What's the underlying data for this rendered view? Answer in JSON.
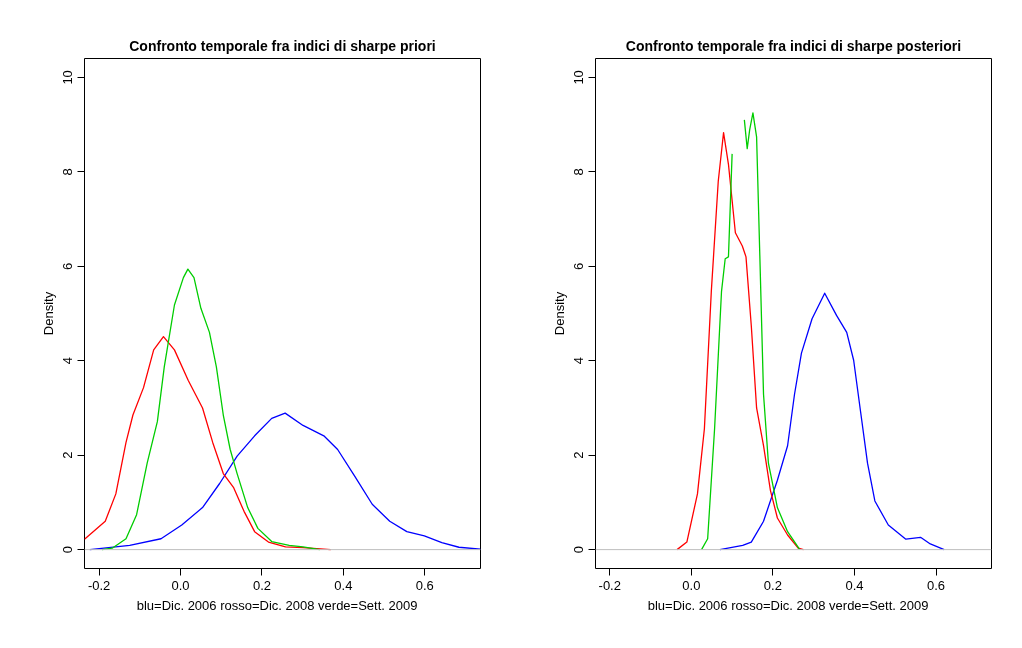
{
  "chart_data": [
    {
      "type": "line",
      "title": "Confronto temporale fra indici di sharpe priori",
      "xlabel": "blu=Dic. 2006  rosso=Dic. 2008   verde=Sett. 2009",
      "ylabel": "Density",
      "xlim": [
        -0.236,
        0.737
      ],
      "ylim": [
        -0.4,
        10.4
      ],
      "xticks": [
        -0.2,
        {
          "value": 0,
          "label": "0.0"
        },
        0.2,
        0.4,
        0.6
      ],
      "yticks": [
        0,
        2,
        4,
        6,
        8,
        10
      ],
      "grid": false,
      "marker": "none",
      "line_style": "solid",
      "ref_lines": [
        {
          "axis": "y",
          "value": 0,
          "color": "#bebebe"
        }
      ],
      "series": [
        {
          "color": "#0000ff",
          "x": [
            -0.223,
            -0.125,
            -0.048,
            0.003,
            0.054,
            0.096,
            0.139,
            0.182,
            0.224,
            0.257,
            0.301,
            0.352,
            0.386,
            0.429,
            0.471,
            0.514,
            0.556,
            0.599,
            0.642,
            0.684,
            0.737
          ],
          "values": [
            0,
            0.09,
            0.23,
            0.52,
            0.89,
            1.4,
            1.98,
            2.41,
            2.78,
            2.89,
            2.63,
            2.41,
            2.12,
            1.54,
            0.96,
            0.6,
            0.38,
            0.29,
            0.15,
            0.05,
            0.01
          ]
        },
        {
          "color": "#ff0000",
          "x": [
            -0.236,
            -0.185,
            -0.159,
            -0.134,
            -0.117,
            -0.091,
            -0.066,
            -0.042,
            -0.015,
            0.019,
            0.054,
            0.079,
            0.105,
            0.13,
            0.156,
            0.182,
            0.216,
            0.258,
            0.301,
            0.369
          ],
          "values": [
            0.22,
            0.6,
            1.18,
            2.27,
            2.85,
            3.43,
            4.23,
            4.51,
            4.23,
            3.58,
            3.0,
            2.27,
            1.61,
            1.32,
            0.81,
            0.38,
            0.16,
            0.06,
            0.04,
            0
          ]
        },
        {
          "color": "#00cd00",
          "x": [
            -0.193,
            -0.168,
            -0.134,
            -0.108,
            -0.082,
            -0.057,
            -0.04,
            -0.015,
            0.007,
            0.018,
            0.033,
            0.05,
            0.071,
            0.088,
            0.105,
            0.122,
            0.139,
            0.165,
            0.19,
            0.224,
            0.267,
            0.301,
            0.342
          ],
          "values": [
            0,
            0.03,
            0.23,
            0.74,
            1.83,
            2.71,
            3.87,
            5.18,
            5.76,
            5.94,
            5.76,
            5.11,
            4.6,
            3.87,
            2.85,
            2.12,
            1.61,
            0.89,
            0.45,
            0.17,
            0.09,
            0.06,
            0
          ]
        }
      ]
    },
    {
      "type": "line",
      "title": "Confronto temporale fra indici di sharpe posteriori",
      "xlabel": "blu=Dic. 2006  rosso=Dic. 2008   verde=Sett. 2009",
      "ylabel": "Density",
      "xlim": [
        -0.235,
        0.736
      ],
      "ylim": [
        -0.4,
        10.4
      ],
      "xticks": [
        -0.2,
        {
          "value": 0,
          "label": "0.0"
        },
        0.2,
        0.4,
        0.6
      ],
      "yticks": [
        0,
        2,
        4,
        6,
        8,
        10
      ],
      "grid": false,
      "marker": "none",
      "line_style": "solid",
      "ref_lines": [
        {
          "axis": "y",
          "value": 0,
          "color": "#bebebe"
        }
      ],
      "series": [
        {
          "color": "#0000ff",
          "x": [
            0.07,
            0.126,
            0.147,
            0.177,
            0.211,
            0.236,
            0.253,
            0.27,
            0.296,
            0.327,
            0.356,
            0.381,
            0.398,
            0.415,
            0.432,
            0.45,
            0.483,
            0.526,
            0.562,
            0.586,
            0.62
          ],
          "values": [
            0,
            0.09,
            0.16,
            0.6,
            1.47,
            2.2,
            3.29,
            4.16,
            4.89,
            5.43,
            4.96,
            4.6,
            4.01,
            2.92,
            1.83,
            1.03,
            0.52,
            0.22,
            0.26,
            0.12,
            0
          ]
        },
        {
          "color": "#ff0000",
          "x": [
            -0.035,
            -0.011,
            0.015,
            0.032,
            0.049,
            0.066,
            0.079,
            0.091,
            0.108,
            0.125,
            0.134,
            0.147,
            0.16,
            0.177,
            0.194,
            0.211,
            0.236,
            0.262,
            0.275
          ],
          "values": [
            0,
            0.16,
            1.18,
            2.56,
            5.47,
            7.8,
            8.83,
            8.16,
            6.71,
            6.43,
            6.2,
            4.74,
            3.0,
            2.2,
            1.25,
            0.67,
            0.31,
            0.03,
            0
          ]
        },
        {
          "color": "#00cd00",
          "x": [
            0.025,
            0.04,
            0.057,
            0.074,
            0.083,
            0.091,
            0.1,
            0.108,
            0.123,
            0.13,
            0.137,
            0.143,
            0.151,
            0.16,
            0.168,
            0.177,
            0.189,
            0.211,
            0.236,
            0.266
          ],
          "values": [
            0,
            0.23,
            2.56,
            5.47,
            6.16,
            6.2,
            8.38,
            null,
            null,
            9.1,
            8.49,
            8.89,
            9.25,
            8.74,
            6.2,
            3.29,
            1.83,
            0.89,
            0.38,
            0
          ]
        }
      ]
    }
  ]
}
